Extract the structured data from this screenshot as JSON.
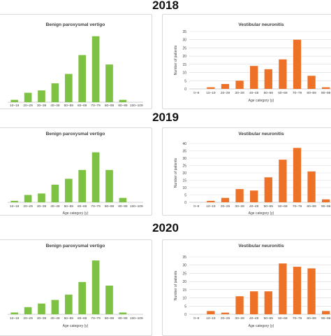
{
  "years": [
    "2018",
    "2019",
    "2020"
  ],
  "colors": {
    "bpv": "#7dc242",
    "vn": "#ee7128",
    "axis": "#bfbfbf",
    "grid": "#d9d9d9",
    "text": "#404040"
  },
  "chart_data": [
    {
      "year": "2018",
      "type": "bar",
      "title": "Benign paroxysmal vertigo",
      "categories": [
        "10–19",
        "20–29",
        "30–39",
        "40–49",
        "50–59",
        "60–69",
        "70–79",
        "80–89",
        "90–99",
        "100–109"
      ],
      "values": [
        1,
        4,
        5,
        8,
        12,
        20,
        28,
        16,
        1,
        0
      ],
      "xlabel": "Age category (y)",
      "ylabel": "",
      "ylim": [
        0,
        30
      ],
      "yticks": [],
      "grid": false
    },
    {
      "year": "2018",
      "type": "bar",
      "title": "Vestibular neuronitis",
      "categories": [
        "0–9",
        "10–19",
        "20–29",
        "30–39",
        "40–49",
        "50–59",
        "60–69",
        "70–79",
        "80–89",
        "90–99"
      ],
      "values": [
        0,
        1,
        3,
        5,
        14,
        12,
        18,
        30,
        8,
        1
      ],
      "xlabel": "Age category (y)",
      "ylabel": "Number of patients",
      "ylim": [
        0,
        35
      ],
      "yticks": [
        "0",
        "5",
        "10",
        "15",
        "20",
        "25",
        "30",
        "35"
      ],
      "grid": true
    },
    {
      "year": "2019",
      "type": "bar",
      "title": "Benign paroxysmal vertigo",
      "categories": [
        "10–19",
        "20–29",
        "30–39",
        "40–49",
        "50–59",
        "60–69",
        "70–79",
        "80–89",
        "90–99",
        "100–109"
      ],
      "values": [
        1,
        5,
        6,
        12,
        16,
        22,
        34,
        22,
        3,
        0
      ],
      "xlabel": "Age category (y)",
      "ylabel": "",
      "ylim": [
        0,
        40
      ],
      "yticks": [],
      "grid": false
    },
    {
      "year": "2019",
      "type": "bar",
      "title": "Vestibular neuronitis",
      "categories": [
        "0–9",
        "10–19",
        "20–29",
        "30–39",
        "40–49",
        "50–59",
        "60–69",
        "70–79",
        "80–89",
        "90–99"
      ],
      "values": [
        0,
        1,
        3,
        9,
        8,
        17,
        29,
        37,
        21,
        2
      ],
      "xlabel": "Age category (y)",
      "ylabel": "Number of patients",
      "ylim": [
        0,
        40
      ],
      "yticks": [
        "0",
        "5",
        "10",
        "15",
        "20",
        "25",
        "30",
        "35",
        "40"
      ],
      "grid": true
    },
    {
      "year": "2020",
      "type": "bar",
      "title": "Benign paroxysmal vertigo",
      "categories": [
        "10–19",
        "20–29",
        "30–39",
        "40–49",
        "50–59",
        "60–69",
        "70–79",
        "80–89",
        "90–99",
        "100–109"
      ],
      "values": [
        1,
        4,
        6,
        8,
        11,
        18,
        30,
        16,
        1,
        0
      ],
      "xlabel": "Age category (y)",
      "ylabel": "",
      "ylim": [
        0,
        32
      ],
      "yticks": [],
      "grid": false
    },
    {
      "year": "2020",
      "type": "bar",
      "title": "Vestibular neuronitis",
      "categories": [
        "0–9",
        "10–19",
        "20–29",
        "30–39",
        "40–49",
        "50–59",
        "60–69",
        "70–79",
        "80–89",
        "90–99"
      ],
      "values": [
        0,
        2,
        1,
        11,
        14,
        14,
        31,
        29,
        28,
        2
      ],
      "xlabel": "Age category (y)",
      "ylabel": "Number of patients",
      "ylim": [
        0,
        35
      ],
      "yticks": [
        "0",
        "5",
        "10",
        "15",
        "20",
        "25",
        "30",
        "35"
      ],
      "grid": true
    }
  ]
}
